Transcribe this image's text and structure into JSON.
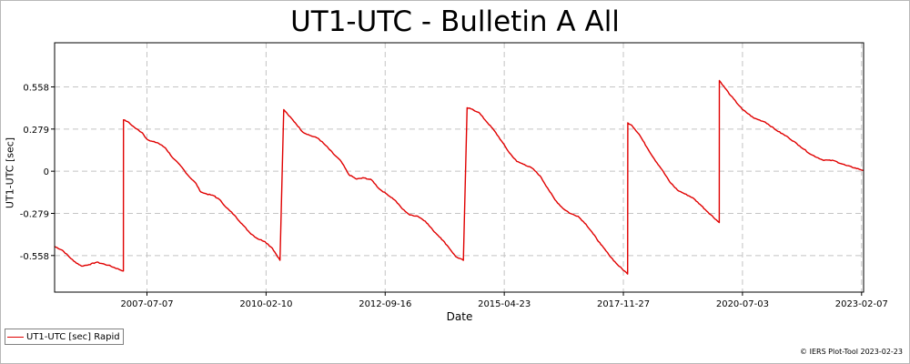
{
  "chart_data": {
    "type": "line",
    "title": "UT1-UTC - Bulletin A All",
    "xlabel": "Date",
    "ylabel": "UT1-UTC [sec]",
    "x_ticks": [
      "2007-07-07",
      "2010-02-10",
      "2012-09-16",
      "2015-04-23",
      "2017-11-27",
      "2020-07-03",
      "2023-02-07"
    ],
    "y_ticks": [
      0.558,
      0.279,
      0,
      -0.279,
      -0.558
    ],
    "y_tick_labels": [
      "0.558",
      "0.279",
      "0",
      "-0.279",
      "-0.558"
    ],
    "xlim": [
      "2005-07-01",
      "2023-02-23"
    ],
    "ylim": [
      -0.8,
      0.85
    ],
    "grid": true,
    "legend_position": "bottom-left",
    "series": [
      {
        "name": "UT1-UTC [sec] Rapid",
        "color": "#e00000",
        "points": [
          [
            "2005-07-01",
            -0.498
          ],
          [
            "2005-09-01",
            -0.523
          ],
          [
            "2005-12-01",
            -0.595
          ],
          [
            "2006-02-01",
            -0.628
          ],
          [
            "2006-04-01",
            -0.618
          ],
          [
            "2006-06-01",
            -0.602
          ],
          [
            "2006-09-01",
            -0.622
          ],
          [
            "2006-12-31",
            -0.66
          ],
          [
            "2007-01-01",
            0.34
          ],
          [
            "2007-02-01",
            0.329
          ],
          [
            "2007-04-01",
            0.288
          ],
          [
            "2007-06-01",
            0.254
          ],
          [
            "2007-07-01",
            0.217
          ],
          [
            "2007-08-01",
            0.2
          ],
          [
            "2007-10-01",
            0.188
          ],
          [
            "2007-12-01",
            0.154
          ],
          [
            "2008-02-01",
            0.085
          ],
          [
            "2008-04-01",
            0.035
          ],
          [
            "2008-06-01",
            -0.03
          ],
          [
            "2008-08-01",
            -0.081
          ],
          [
            "2008-09-01",
            -0.131
          ],
          [
            "2008-10-01",
            -0.145
          ],
          [
            "2008-12-31",
            -0.165
          ],
          [
            "2009-01-01",
            -0.17
          ],
          [
            "2009-02-01",
            -0.185
          ],
          [
            "2009-04-01",
            -0.241
          ],
          [
            "2009-06-01",
            -0.29
          ],
          [
            "2009-08-01",
            -0.348
          ],
          [
            "2009-10-01",
            -0.405
          ],
          [
            "2009-12-01",
            -0.445
          ],
          [
            "2010-02-01",
            -0.465
          ],
          [
            "2010-04-01",
            -0.51
          ],
          [
            "2010-06-01",
            -0.589
          ],
          [
            "2010-07-01",
            0.408
          ],
          [
            "2010-08-01",
            0.377
          ],
          [
            "2010-10-01",
            0.32
          ],
          [
            "2010-12-01",
            0.258
          ],
          [
            "2011-02-01",
            0.235
          ],
          [
            "2011-04-01",
            0.218
          ],
          [
            "2011-06-01",
            0.17
          ],
          [
            "2011-08-01",
            0.115
          ],
          [
            "2011-10-01",
            0.065
          ],
          [
            "2011-12-01",
            -0.022
          ],
          [
            "2012-02-01",
            -0.052
          ],
          [
            "2012-04-01",
            -0.044
          ],
          [
            "2012-06-01",
            -0.058
          ],
          [
            "2012-08-01",
            -0.118
          ],
          [
            "2012-10-01",
            -0.152
          ],
          [
            "2012-12-01",
            -0.19
          ],
          [
            "2013-02-01",
            -0.25
          ],
          [
            "2013-04-01",
            -0.29
          ],
          [
            "2013-06-01",
            -0.297
          ],
          [
            "2013-08-01",
            -0.33
          ],
          [
            "2013-10-01",
            -0.39
          ],
          [
            "2013-12-01",
            -0.44
          ],
          [
            "2014-02-01",
            -0.5
          ],
          [
            "2014-04-01",
            -0.565
          ],
          [
            "2014-06-01",
            -0.59
          ],
          [
            "2014-07-01",
            0.42
          ],
          [
            "2014-08-01",
            0.412
          ],
          [
            "2014-10-01",
            0.39
          ],
          [
            "2014-12-01",
            0.33
          ],
          [
            "2015-02-01",
            0.27
          ],
          [
            "2015-04-01",
            0.2
          ],
          [
            "2015-06-01",
            0.124
          ],
          [
            "2015-08-01",
            0.065
          ],
          [
            "2015-10-01",
            0.044
          ],
          [
            "2015-12-01",
            0.02
          ],
          [
            "2016-02-01",
            -0.03
          ],
          [
            "2016-04-01",
            -0.11
          ],
          [
            "2016-06-01",
            -0.19
          ],
          [
            "2016-08-01",
            -0.245
          ],
          [
            "2016-10-01",
            -0.28
          ],
          [
            "2016-12-01",
            -0.298
          ],
          [
            "2017-02-01",
            -0.35
          ],
          [
            "2017-04-01",
            -0.415
          ],
          [
            "2017-06-01",
            -0.485
          ],
          [
            "2017-08-01",
            -0.55
          ],
          [
            "2017-10-01",
            -0.61
          ],
          [
            "2017-12-31",
            -0.68
          ],
          [
            "2018-01-01",
            0.32
          ],
          [
            "2018-02-01",
            0.305
          ],
          [
            "2018-04-01",
            0.245
          ],
          [
            "2018-06-01",
            0.16
          ],
          [
            "2018-08-01",
            0.08
          ],
          [
            "2018-10-01",
            0.01
          ],
          [
            "2018-12-01",
            -0.07
          ],
          [
            "2019-02-01",
            -0.125
          ],
          [
            "2019-04-01",
            -0.15
          ],
          [
            "2019-06-01",
            -0.175
          ],
          [
            "2019-08-01",
            -0.22
          ],
          [
            "2019-10-01",
            -0.27
          ],
          [
            "2019-12-31",
            -0.34
          ],
          [
            "2020-01-01",
            0.6
          ],
          [
            "2020-04-01",
            0.5
          ],
          [
            "2020-07-01",
            0.41
          ],
          [
            "2020-10-01",
            0.352
          ],
          [
            "2021-01-01",
            0.325
          ],
          [
            "2021-04-01",
            0.27
          ],
          [
            "2021-07-01",
            0.225
          ],
          [
            "2021-10-01",
            0.168
          ],
          [
            "2022-01-01",
            0.11
          ],
          [
            "2022-04-01",
            0.075
          ],
          [
            "2022-07-01",
            0.07
          ],
          [
            "2022-10-01",
            0.04
          ],
          [
            "2023-02-23",
            0.005
          ]
        ]
      }
    ]
  },
  "legend": {
    "label": "UT1-UTC [sec] Rapid",
    "color": "#e00000"
  },
  "credit": "© IERS Plot-Tool 2023-02-23"
}
